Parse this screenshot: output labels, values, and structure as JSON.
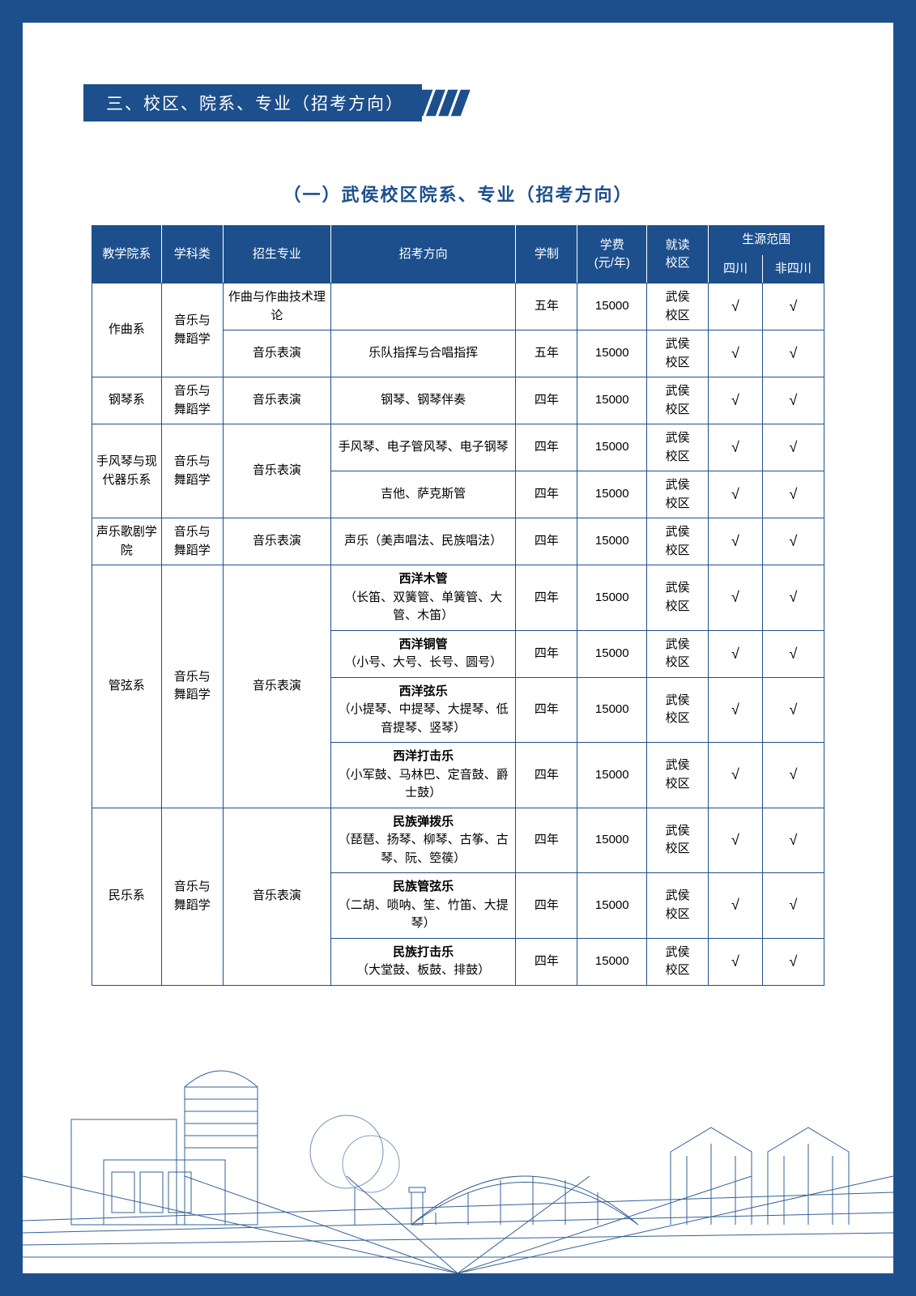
{
  "colors": {
    "brand": "#1d4f8c",
    "page_bg": "#ffffff",
    "border": "#1d4f8c",
    "text": "#000000"
  },
  "section_title": "三、校区、院系、专业（招考方向）",
  "subtitle": "（一）武侯校区院系、专业（招考方向）",
  "table": {
    "headers": {
      "col1": "教学院系",
      "col2": "学科类",
      "col3": "招生专业",
      "col4": "招考方向",
      "col5": "学制",
      "col6_l1": "学费",
      "col6_l2": "(元/年)",
      "col7_l1": "就读",
      "col7_l2": "校区",
      "scope": "生源范围",
      "scope_a": "四川",
      "scope_b": "非四川"
    },
    "groups": [
      {
        "dept": "作曲系",
        "category": "音乐与舞蹈学",
        "rows": [
          {
            "major": "作曲与作曲技术理论",
            "direction": "",
            "years": "五年",
            "fee": "15000",
            "campus": "武侯校区",
            "sc": "√",
            "nsc": "√"
          },
          {
            "major": "音乐表演",
            "direction": "乐队指挥与合唱指挥",
            "years": "五年",
            "fee": "15000",
            "campus": "武侯校区",
            "sc": "√",
            "nsc": "√"
          }
        ]
      },
      {
        "dept": "钢琴系",
        "category": "音乐与舞蹈学",
        "rows": [
          {
            "major": "音乐表演",
            "direction": "钢琴、钢琴伴奏",
            "years": "四年",
            "fee": "15000",
            "campus": "武侯校区",
            "sc": "√",
            "nsc": "√"
          }
        ]
      },
      {
        "dept": "手风琴与现代器乐系",
        "category": "音乐与舞蹈学",
        "major_span": "音乐表演",
        "rows": [
          {
            "direction": "手风琴、电子管风琴、电子钢琴",
            "years": "四年",
            "fee": "15000",
            "campus": "武侯校区",
            "sc": "√",
            "nsc": "√"
          },
          {
            "direction": "吉他、萨克斯管",
            "years": "四年",
            "fee": "15000",
            "campus": "武侯校区",
            "sc": "√",
            "nsc": "√"
          }
        ]
      },
      {
        "dept": "声乐歌剧学院",
        "category": "音乐与舞蹈学",
        "rows": [
          {
            "major": "音乐表演",
            "direction": "声乐（美声唱法、民族唱法）",
            "years": "四年",
            "fee": "15000",
            "campus": "武侯校区",
            "sc": "√",
            "nsc": "√"
          }
        ]
      },
      {
        "dept": "管弦系",
        "category": "音乐与舞蹈学",
        "major_span": "音乐表演",
        "rows": [
          {
            "dir_bold": "西洋木管",
            "dir_sub": "（长笛、双簧管、单簧管、大管、木笛）",
            "years": "四年",
            "fee": "15000",
            "campus": "武侯校区",
            "sc": "√",
            "nsc": "√"
          },
          {
            "dir_bold": "西洋铜管",
            "dir_sub": "（小号、大号、长号、圆号）",
            "years": "四年",
            "fee": "15000",
            "campus": "武侯校区",
            "sc": "√",
            "nsc": "√"
          },
          {
            "dir_bold": "西洋弦乐",
            "dir_sub": "（小提琴、中提琴、大提琴、低音提琴、竖琴）",
            "years": "四年",
            "fee": "15000",
            "campus": "武侯校区",
            "sc": "√",
            "nsc": "√"
          },
          {
            "dir_bold": "西洋打击乐",
            "dir_sub": "（小军鼓、马林巴、定音鼓、爵士鼓）",
            "years": "四年",
            "fee": "15000",
            "campus": "武侯校区",
            "sc": "√",
            "nsc": "√"
          }
        ]
      },
      {
        "dept": "民乐系",
        "category": "音乐与舞蹈学",
        "major_span": "音乐表演",
        "rows": [
          {
            "dir_bold": "民族弹拨乐",
            "dir_sub": "（琵琶、扬琴、柳琴、古筝、古琴、阮、箜篌）",
            "years": "四年",
            "fee": "15000",
            "campus": "武侯校区",
            "sc": "√",
            "nsc": "√"
          },
          {
            "dir_bold": "民族管弦乐",
            "dir_sub": "（二胡、唢呐、笙、竹笛、大提琴）",
            "years": "四年",
            "fee": "15000",
            "campus": "武侯校区",
            "sc": "√",
            "nsc": "√"
          },
          {
            "dir_bold": "民族打击乐",
            "dir_sub": "（大堂鼓、板鼓、排鼓）",
            "years": "四年",
            "fee": "15000",
            "campus": "武侯校区",
            "sc": "√",
            "nsc": "√"
          }
        ]
      }
    ]
  }
}
